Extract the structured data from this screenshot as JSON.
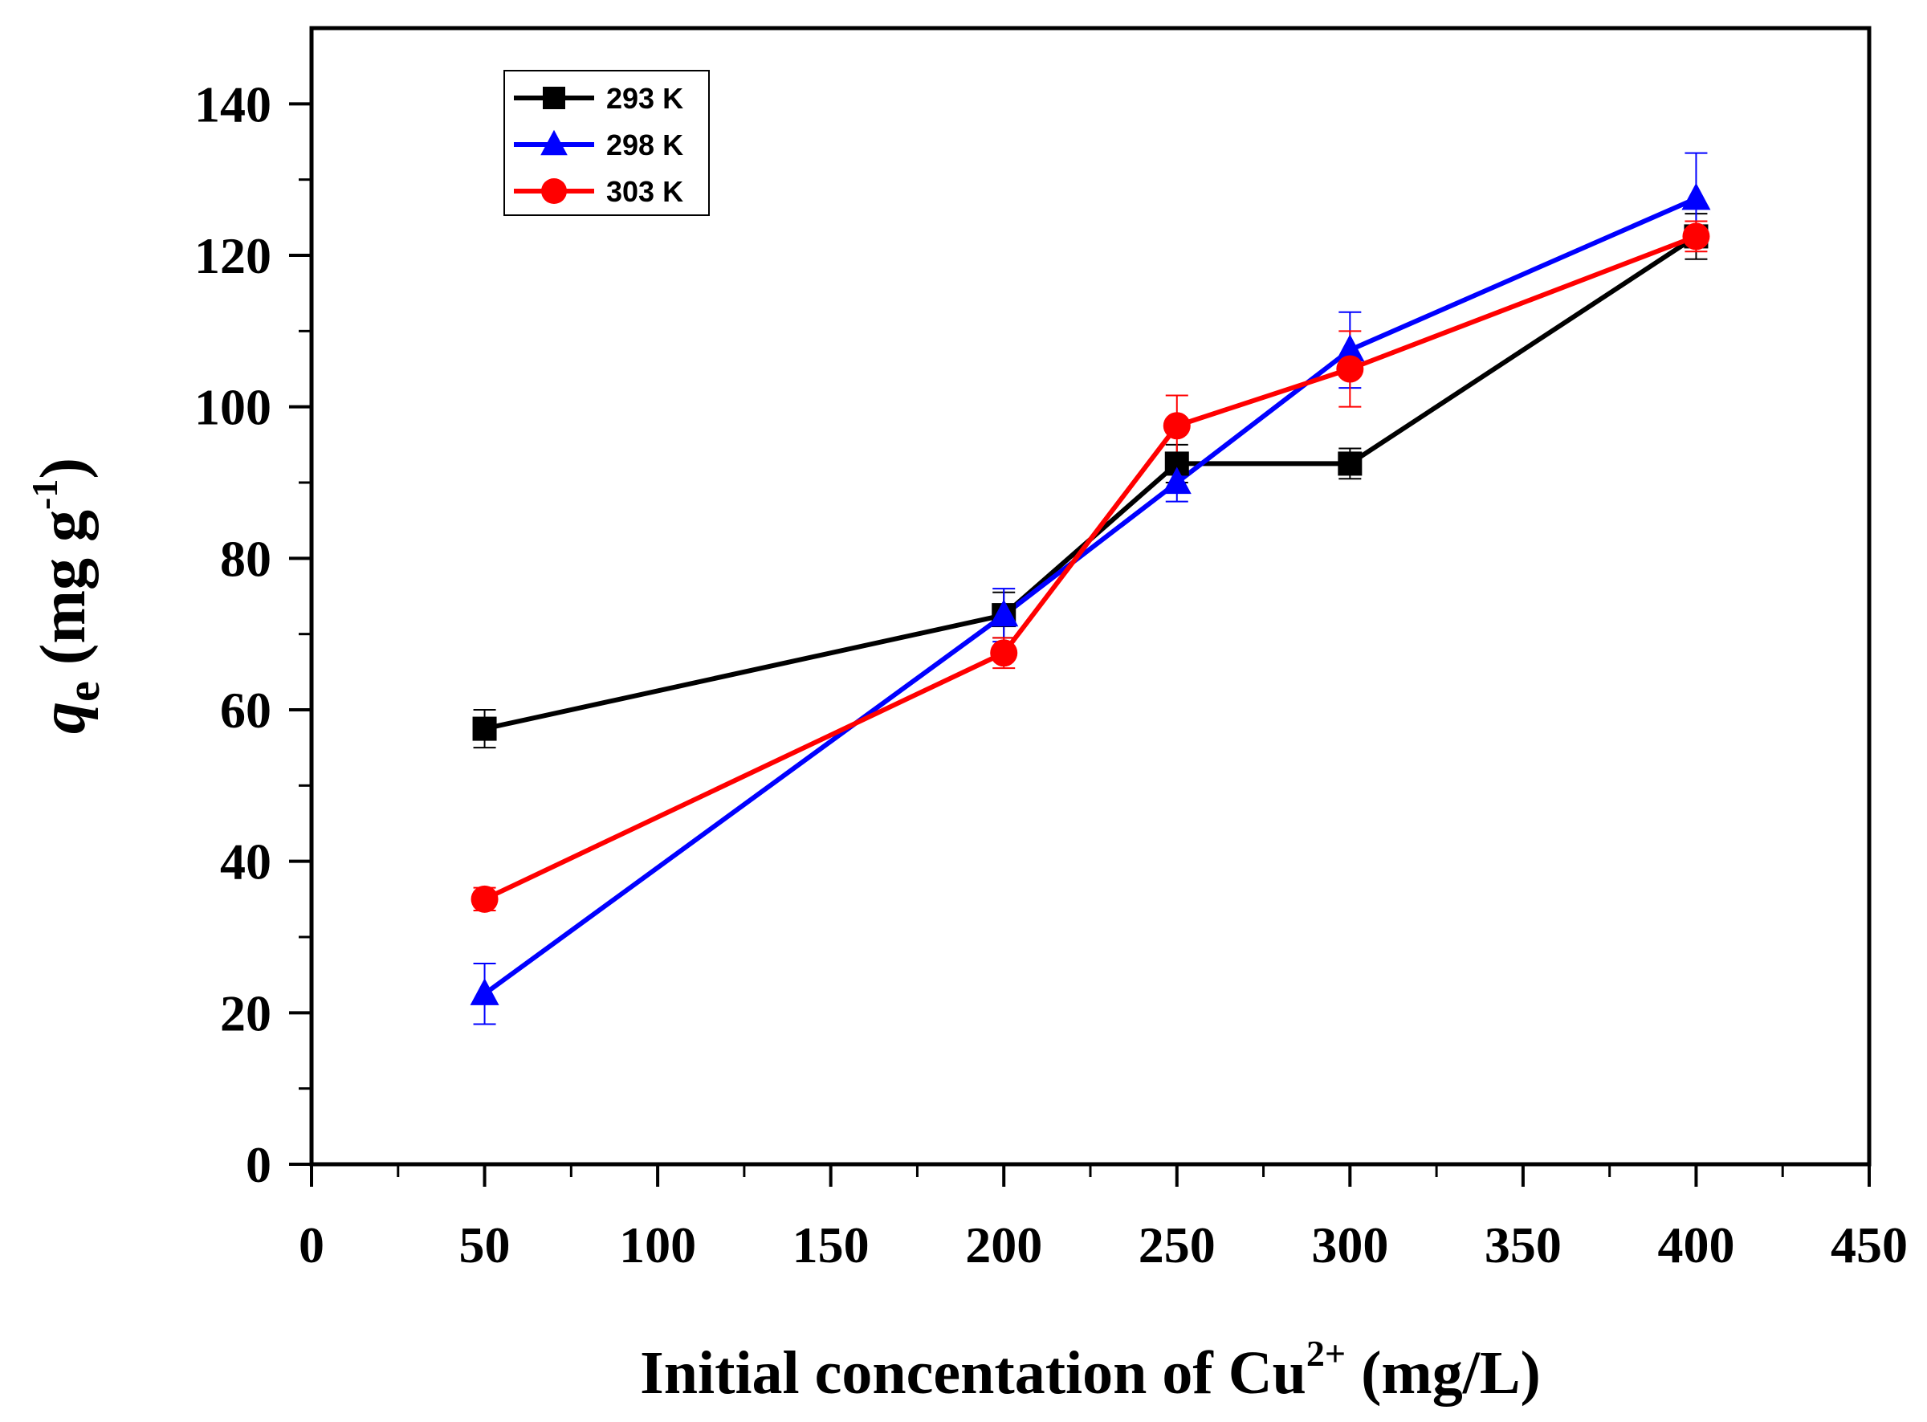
{
  "chart_data": {
    "type": "line",
    "title": "",
    "xlabel": {
      "prefix": "Initial concentation of Cu",
      "superscript": "2+",
      "suffix": " (mg/L)"
    },
    "ylabel": {
      "symbol": "q",
      "subscript": "e",
      "unit_prefix": " (mg g",
      "unit_superscript": "-1",
      "unit_suffix": ")"
    },
    "xlim": [
      0,
      450
    ],
    "ylim": [
      0,
      150
    ],
    "xticks": [
      0,
      50,
      100,
      150,
      200,
      250,
      300,
      350,
      400,
      450
    ],
    "yticks": [
      0,
      20,
      40,
      60,
      80,
      100,
      120,
      140
    ],
    "x": [
      50,
      200,
      250,
      300,
      400
    ],
    "legend_position": "top-left",
    "series": [
      {
        "name": "293 K",
        "color": "#000000",
        "marker": "square",
        "values": [
          57.5,
          72.5,
          92.5,
          92.5,
          122.5
        ],
        "errors": [
          2.5,
          3.0,
          2.5,
          2.0,
          3.0
        ]
      },
      {
        "name": "298 K",
        "color": "#0000ff",
        "marker": "triangle",
        "values": [
          22.5,
          72.5,
          90.0,
          107.5,
          127.5
        ],
        "errors": [
          4.0,
          3.5,
          2.5,
          5.0,
          6.0
        ]
      },
      {
        "name": "303 K",
        "color": "#ff0000",
        "marker": "circle",
        "values": [
          35.0,
          67.5,
          97.5,
          105.0,
          122.5
        ],
        "errors": [
          1.5,
          2.0,
          4.0,
          5.0,
          2.0
        ]
      }
    ]
  }
}
